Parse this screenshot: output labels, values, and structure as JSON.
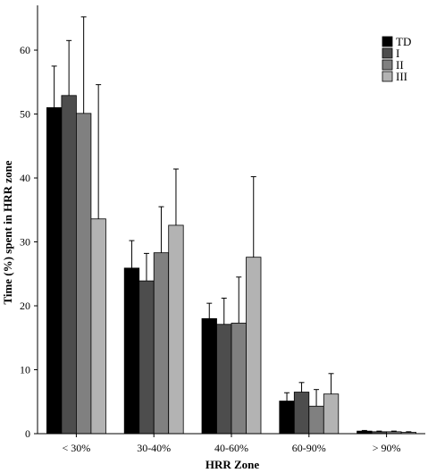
{
  "chart_data": {
    "type": "bar",
    "xlabel": "HRR Zone",
    "ylabel": "Time (%) spent in HRR zone",
    "categories": [
      "< 30%",
      "30-40%",
      "40-60%",
      "60-90%",
      "> 90%"
    ],
    "ylim": [
      0,
      67
    ],
    "yticks": [
      0,
      10,
      20,
      30,
      40,
      50,
      60
    ],
    "error_bars": "upper",
    "legend_position": "top-right",
    "series": [
      {
        "name": "TD",
        "color": "#000000",
        "values": [
          51.0,
          25.9,
          18.0,
          5.1,
          0.4
        ],
        "errors": [
          6.5,
          4.3,
          2.4,
          1.3,
          0.1
        ]
      },
      {
        "name": "I",
        "color": "#4d4d4d",
        "values": [
          52.9,
          23.9,
          17.1,
          6.5,
          0.3
        ],
        "errors": [
          8.6,
          4.3,
          4.1,
          1.5,
          0.1
        ]
      },
      {
        "name": "II",
        "color": "#808080",
        "values": [
          50.1,
          28.3,
          17.3,
          4.3,
          0.3
        ],
        "errors": [
          15.1,
          7.2,
          7.2,
          2.6,
          0.1
        ]
      },
      {
        "name": "III",
        "color": "#b3b3b3",
        "values": [
          33.6,
          32.6,
          27.6,
          6.2,
          0.2
        ],
        "errors": [
          21.0,
          8.8,
          12.6,
          3.2,
          0.1
        ]
      }
    ]
  }
}
